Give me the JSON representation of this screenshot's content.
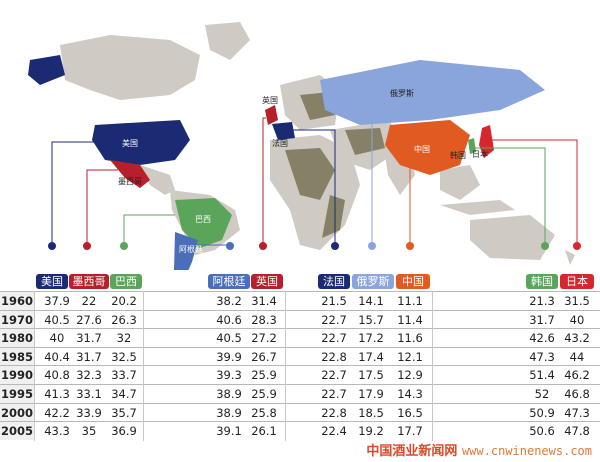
{
  "countries": [
    {
      "id": "us",
      "name": "美国",
      "color": "#1a2a73"
    },
    {
      "id": "mx",
      "name": "墨西哥",
      "color": "#b5202a"
    },
    {
      "id": "br",
      "name": "巴西",
      "color": "#5aa55a"
    },
    {
      "id": "ar",
      "name": "阿根廷",
      "color": "#4a6fb8"
    },
    {
      "id": "uk",
      "name": "英国",
      "color": "#b5202a"
    },
    {
      "id": "fr",
      "name": "法国",
      "color": "#1a2a73"
    },
    {
      "id": "ru",
      "name": "俄罗斯",
      "color": "#8aa4dc"
    },
    {
      "id": "cn",
      "name": "中国",
      "color": "#e05a22"
    },
    {
      "id": "kr",
      "name": "韩国",
      "color": "#5aa55a"
    },
    {
      "id": "jp",
      "name": "日本",
      "color": "#d7262c"
    }
  ],
  "map_labels": {
    "us": "美国",
    "mx": "墨西哥",
    "br": "巴西",
    "ar": "阿根廷",
    "uk": "英国",
    "fr": "法国",
    "ru": "俄罗斯",
    "cn": "中国",
    "kr": "韩国",
    "jp": "日本"
  },
  "table": {
    "rows": [
      {
        "year": "1960",
        "values": [
          "37.9",
          "22",
          "20.2",
          "38.2",
          "31.4",
          "21.5",
          "14.1",
          "11.1",
          "21.3",
          "31.5"
        ]
      },
      {
        "year": "1970",
        "values": [
          "40.5",
          "27.6",
          "26.3",
          "40.6",
          "28.3",
          "22.7",
          "15.7",
          "11.4",
          "31.7",
          "40"
        ]
      },
      {
        "year": "1980",
        "values": [
          "40",
          "31.7",
          "32",
          "40.5",
          "27.2",
          "22.7",
          "17.2",
          "11.6",
          "42.6",
          "43.2"
        ]
      },
      {
        "year": "1985",
        "values": [
          "40.4",
          "31.7",
          "32.5",
          "39.9",
          "26.7",
          "22.8",
          "17.4",
          "12.1",
          "47.3",
          "44"
        ]
      },
      {
        "year": "1990",
        "values": [
          "40.8",
          "32.3",
          "33.7",
          "39.3",
          "25.9",
          "22.7",
          "17.5",
          "12.9",
          "51.4",
          "46.2"
        ]
      },
      {
        "year": "1995",
        "values": [
          "41.3",
          "33.1",
          "34.7",
          "38.9",
          "25.9",
          "22.7",
          "17.9",
          "14.3",
          "52",
          "46.8"
        ]
      },
      {
        "year": "2000",
        "values": [
          "42.2",
          "33.9",
          "35.7",
          "38.9",
          "25.8",
          "22.8",
          "18.5",
          "16.5",
          "50.9",
          "47.3"
        ]
      },
      {
        "year": "2005",
        "values": [
          "43.3",
          "35",
          "36.9",
          "39.1",
          "26.1",
          "22.4",
          "19.2",
          "17.7",
          "50.6",
          "47.8"
        ]
      }
    ]
  },
  "footer": {
    "site_name": "中国酒业新闻网",
    "url": "www.cnwinenews.com"
  }
}
